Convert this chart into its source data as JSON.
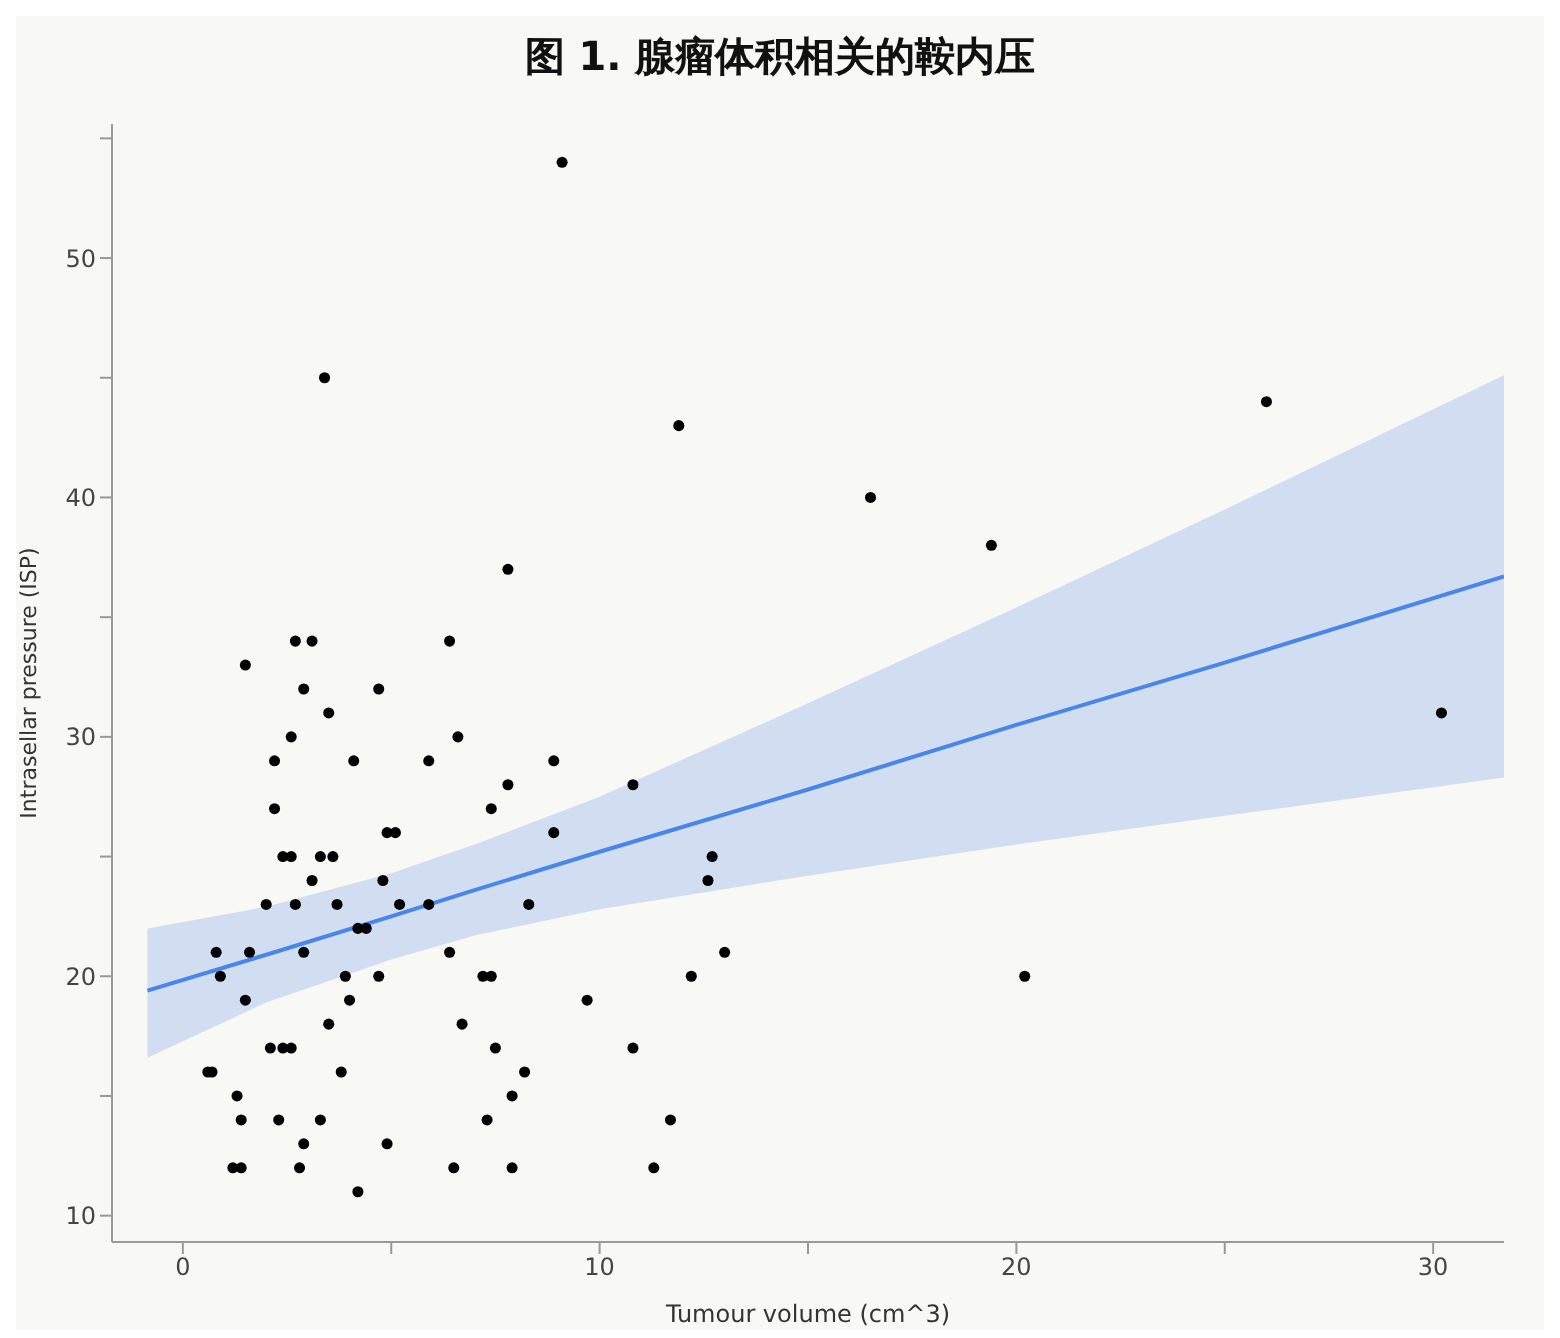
{
  "chart_data": {
    "type": "scatter",
    "title": "图 1. 腺瘤体积相关的鞍内压",
    "xlabel": "Tumour volume (cm^3)",
    "ylabel": "Intrasellar pressure (ISP)",
    "xlim": [
      -1.7,
      31.7
    ],
    "ylim": [
      8.9,
      55.6
    ],
    "xticks": [
      0,
      {
        "value": 5,
        "label": null
      },
      10,
      {
        "value": 15,
        "label": null
      },
      20,
      {
        "value": 25,
        "label": null
      },
      30
    ],
    "yticks": [
      10,
      {
        "value": 15,
        "label": null
      },
      20,
      {
        "value": 25,
        "label": null
      },
      30,
      {
        "value": 35,
        "label": null
      },
      40,
      {
        "value": 45,
        "label": null
      },
      50,
      {
        "value": 55,
        "label": null
      }
    ],
    "grid": false,
    "marker": "circle",
    "series": [
      {
        "color": "#000000",
        "x": [
          2.7,
          3.1,
          6.4,
          1.5,
          2.9,
          4.7,
          3.5,
          2.6,
          6.6,
          2.2,
          4.1,
          5.9,
          2.2,
          2.4,
          2.6,
          3.3,
          3.6,
          3.1,
          4.8,
          4.9,
          5.1,
          2.0,
          2.7,
          3.7,
          5.2,
          5.9,
          4.2,
          4.4,
          0.8,
          1.6,
          2.9,
          6.4,
          0.9,
          3.9,
          4.7,
          1.5,
          4.0,
          3.5,
          6.7,
          2.1,
          2.4,
          2.6,
          0.6,
          0.7,
          3.8,
          1.3,
          1.4,
          2.3,
          3.3,
          2.9,
          4.9,
          1.2,
          1.4,
          2.8,
          6.5,
          4.2,
          8.9,
          7.8,
          10.8,
          7.4,
          8.9,
          12.7,
          12.6,
          8.3,
          13.0,
          7.2,
          7.4,
          12.2,
          9.7,
          7.5,
          10.8,
          8.2,
          7.9,
          7.3,
          11.7,
          7.9,
          11.3,
          9.1,
          3.4,
          11.9,
          7.8,
          16.5,
          19.4,
          26.0,
          30.2,
          20.2
        ],
        "values": [
          34,
          34,
          34,
          33,
          32,
          32,
          31,
          30,
          30,
          29,
          29,
          29,
          27,
          25,
          25,
          25,
          25,
          24,
          24,
          26,
          26,
          23,
          23,
          23,
          23,
          23,
          22,
          22,
          21,
          21,
          21,
          21,
          20,
          20,
          20,
          19,
          19,
          18,
          18,
          17,
          17,
          17,
          16,
          16,
          16,
          15,
          14,
          14,
          14,
          13,
          13,
          12,
          12,
          12,
          12,
          11,
          29,
          28,
          28,
          27,
          26,
          25,
          24,
          23,
          21,
          20,
          20,
          20,
          19,
          17,
          17,
          16,
          15,
          14,
          14,
          12,
          12,
          54,
          45,
          43,
          37,
          40,
          38,
          44,
          31,
          20
        ]
      },
      {
        "type": "line",
        "marker": "none",
        "color": "#4a86e8",
        "x": [
          -0.85,
          2,
          5,
          7,
          10,
          15,
          20,
          25,
          31.7
        ],
        "values": [
          19.4,
          20.9,
          22.5,
          23.6,
          25.2,
          27.8,
          30.5,
          33.1,
          36.7
        ],
        "lower": [
          16.6,
          18.9,
          20.7,
          21.7,
          22.8,
          24.2,
          25.5,
          26.7,
          28.3
        ],
        "upper": [
          22.0,
          22.9,
          24.3,
          25.5,
          27.5,
          31.4,
          35.4,
          39.5,
          45.1
        ]
      }
    ]
  }
}
